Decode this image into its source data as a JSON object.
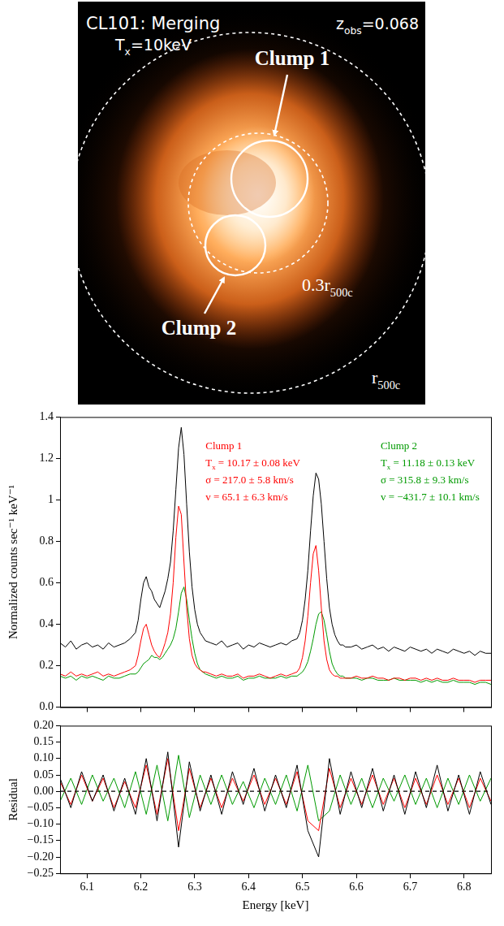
{
  "image": {
    "title": "CL101: Merging",
    "temperature": {
      "main": "T",
      "sub": "x",
      "rest": "=10keV"
    },
    "redshift": {
      "main": "z",
      "sub": "obs",
      "rest": "=0.068"
    },
    "clumps": [
      "Clump 1",
      "Clump 2"
    ],
    "apertures": [
      {
        "main": "0.3r",
        "sub": "500c"
      },
      {
        "main": "r",
        "sub": "500c"
      }
    ]
  },
  "chart_data": [
    {
      "type": "line",
      "ylabel": "Normalized counts sec⁻¹ keV⁻¹",
      "xlim": [
        6.05,
        6.85
      ],
      "xticks": [
        6.1,
        6.2,
        6.3,
        6.4,
        6.5,
        6.6,
        6.7,
        6.8
      ],
      "ylim": [
        0,
        1.4
      ],
      "yticks": [
        {
          "value": 0,
          "label": "0.0"
        },
        0.2,
        0.4,
        0.6,
        0.8,
        1.0,
        1.2,
        1.4
      ],
      "tick_labels": "y",
      "grid": false,
      "x": [
        6.05,
        6.06,
        6.07,
        6.08,
        6.09,
        6.1,
        6.11,
        6.12,
        6.13,
        6.14,
        6.15,
        6.16,
        6.17,
        6.18,
        6.19,
        6.195,
        6.2,
        6.205,
        6.21,
        6.215,
        6.22,
        6.225,
        6.23,
        6.235,
        6.24,
        6.245,
        6.25,
        6.255,
        6.26,
        6.265,
        6.27,
        6.275,
        6.28,
        6.285,
        6.29,
        6.295,
        6.3,
        6.305,
        6.31,
        6.315,
        6.32,
        6.33,
        6.34,
        6.35,
        6.36,
        6.37,
        6.38,
        6.39,
        6.4,
        6.41,
        6.42,
        6.43,
        6.44,
        6.45,
        6.46,
        6.47,
        6.48,
        6.49,
        6.495,
        6.5,
        6.505,
        6.51,
        6.515,
        6.52,
        6.525,
        6.53,
        6.535,
        6.54,
        6.545,
        6.55,
        6.555,
        6.56,
        6.565,
        6.57,
        6.575,
        6.58,
        6.59,
        6.6,
        6.61,
        6.62,
        6.63,
        6.64,
        6.65,
        6.66,
        6.67,
        6.68,
        6.69,
        6.7,
        6.71,
        6.72,
        6.73,
        6.74,
        6.75,
        6.76,
        6.77,
        6.78,
        6.79,
        6.8,
        6.81,
        6.82,
        6.83,
        6.84,
        6.85
      ],
      "series": [
        {
          "color": "#000000",
          "marker": "none",
          "line_style": "solid",
          "values": [
            0.31,
            0.29,
            0.32,
            0.28,
            0.3,
            0.31,
            0.29,
            0.3,
            0.28,
            0.31,
            0.29,
            0.3,
            0.31,
            0.33,
            0.36,
            0.42,
            0.52,
            0.6,
            0.63,
            0.58,
            0.56,
            0.52,
            0.5,
            0.48,
            0.52,
            0.56,
            0.62,
            0.7,
            0.85,
            1.05,
            1.25,
            1.35,
            1.22,
            0.98,
            0.75,
            0.58,
            0.47,
            0.4,
            0.36,
            0.34,
            0.32,
            0.31,
            0.3,
            0.32,
            0.29,
            0.3,
            0.31,
            0.28,
            0.3,
            0.29,
            0.31,
            0.3,
            0.29,
            0.3,
            0.31,
            0.3,
            0.32,
            0.33,
            0.36,
            0.42,
            0.52,
            0.66,
            0.85,
            1.02,
            1.13,
            1.1,
            0.98,
            0.8,
            0.62,
            0.48,
            0.4,
            0.35,
            0.32,
            0.3,
            0.3,
            0.29,
            0.29,
            0.3,
            0.28,
            0.29,
            0.3,
            0.28,
            0.29,
            0.27,
            0.29,
            0.28,
            0.27,
            0.29,
            0.28,
            0.27,
            0.28,
            0.26,
            0.28,
            0.27,
            0.26,
            0.28,
            0.27,
            0.26,
            0.27,
            0.25,
            0.27,
            0.26,
            0.26
          ]
        },
        {
          "color": "#ff0000",
          "marker": "none",
          "line_style": "solid",
          "values": [
            0.16,
            0.15,
            0.17,
            0.15,
            0.16,
            0.15,
            0.16,
            0.17,
            0.15,
            0.16,
            0.15,
            0.16,
            0.17,
            0.18,
            0.2,
            0.25,
            0.32,
            0.38,
            0.4,
            0.35,
            0.3,
            0.27,
            0.25,
            0.24,
            0.27,
            0.31,
            0.36,
            0.45,
            0.6,
            0.82,
            0.97,
            0.93,
            0.7,
            0.48,
            0.33,
            0.25,
            0.21,
            0.19,
            0.18,
            0.17,
            0.17,
            0.16,
            0.15,
            0.16,
            0.15,
            0.15,
            0.16,
            0.14,
            0.15,
            0.15,
            0.16,
            0.15,
            0.14,
            0.15,
            0.16,
            0.15,
            0.16,
            0.17,
            0.19,
            0.24,
            0.32,
            0.44,
            0.6,
            0.74,
            0.78,
            0.66,
            0.48,
            0.32,
            0.23,
            0.18,
            0.16,
            0.15,
            0.15,
            0.14,
            0.14,
            0.14,
            0.14,
            0.15,
            0.14,
            0.14,
            0.15,
            0.14,
            0.14,
            0.13,
            0.14,
            0.14,
            0.13,
            0.14,
            0.14,
            0.13,
            0.14,
            0.13,
            0.14,
            0.13,
            0.13,
            0.14,
            0.13,
            0.13,
            0.13,
            0.12,
            0.13,
            0.13,
            0.13
          ]
        },
        {
          "color": "#009a00",
          "marker": "none",
          "line_style": "solid",
          "values": [
            0.15,
            0.14,
            0.15,
            0.13,
            0.15,
            0.14,
            0.15,
            0.14,
            0.13,
            0.15,
            0.14,
            0.14,
            0.15,
            0.16,
            0.16,
            0.17,
            0.19,
            0.21,
            0.22,
            0.23,
            0.25,
            0.24,
            0.24,
            0.23,
            0.24,
            0.26,
            0.28,
            0.3,
            0.33,
            0.38,
            0.46,
            0.55,
            0.58,
            0.52,
            0.42,
            0.33,
            0.26,
            0.21,
            0.18,
            0.17,
            0.16,
            0.15,
            0.14,
            0.15,
            0.14,
            0.14,
            0.15,
            0.13,
            0.14,
            0.14,
            0.15,
            0.14,
            0.14,
            0.14,
            0.15,
            0.14,
            0.15,
            0.15,
            0.16,
            0.17,
            0.19,
            0.22,
            0.27,
            0.33,
            0.4,
            0.45,
            0.46,
            0.42,
            0.35,
            0.27,
            0.21,
            0.18,
            0.16,
            0.15,
            0.15,
            0.14,
            0.14,
            0.14,
            0.13,
            0.14,
            0.14,
            0.13,
            0.13,
            0.13,
            0.14,
            0.13,
            0.13,
            0.13,
            0.13,
            0.12,
            0.13,
            0.12,
            0.13,
            0.12,
            0.12,
            0.13,
            0.12,
            0.12,
            0.12,
            0.11,
            0.12,
            0.12,
            0.11
          ]
        }
      ],
      "annotations": [
        {
          "color": "#ff0000",
          "lines": [
            "Clump 1",
            {
              "main": "T",
              "sub": "x",
              "rest": " = 10.17 ± 0.08 keV"
            },
            "σ = 217.0 ± 5.8 km/s",
            "v = 65.1 ± 6.3 km/s"
          ]
        },
        {
          "color": "#009a00",
          "lines": [
            "Clump 2",
            {
              "main": "T",
              "sub": "x",
              "rest": " = 11.18 ± 0.13 keV"
            },
            "σ = 315.8 ± 9.3 km/s",
            "v = −431.7 ± 10.1 km/s"
          ]
        }
      ]
    },
    {
      "type": "line",
      "xlabel": "Energy [keV]",
      "ylabel": "Residual",
      "xlim": [
        6.05,
        6.85
      ],
      "xticks": [
        6.1,
        6.2,
        6.3,
        6.4,
        6.5,
        6.6,
        6.7,
        6.8
      ],
      "ylim": [
        -0.25,
        0.2
      ],
      "yticks": [
        {
          "value": -0.25,
          "label": "−0.25"
        },
        {
          "value": -0.2,
          "label": "−0.20"
        },
        {
          "value": -0.15,
          "label": "−0.15"
        },
        {
          "value": -0.1,
          "label": "−0.10"
        },
        {
          "value": -0.05,
          "label": "−0.05"
        },
        {
          "value": 0,
          "label": "0.00"
        },
        {
          "value": 0.05,
          "label": "0.05"
        },
        {
          "value": 0.1,
          "label": "0.10"
        },
        {
          "value": 0.15,
          "label": "0.15"
        },
        {
          "value": 0.2,
          "label": "0.20"
        }
      ],
      "grid": false,
      "x": [
        6.05,
        6.07,
        6.09,
        6.11,
        6.13,
        6.15,
        6.17,
        6.19,
        6.21,
        6.23,
        6.25,
        6.27,
        6.29,
        6.31,
        6.33,
        6.35,
        6.37,
        6.39,
        6.41,
        6.43,
        6.45,
        6.47,
        6.49,
        6.51,
        6.53,
        6.55,
        6.57,
        6.59,
        6.61,
        6.63,
        6.65,
        6.67,
        6.69,
        6.71,
        6.73,
        6.75,
        6.77,
        6.79,
        6.81,
        6.83,
        6.85
      ],
      "series": [
        {
          "color": "#000000",
          "marker": "none",
          "line_style": "solid",
          "values": [
            0.04,
            -0.05,
            0.06,
            -0.03,
            0.05,
            -0.06,
            0.04,
            -0.07,
            0.1,
            -0.09,
            0.12,
            -0.17,
            0.09,
            -0.06,
            0.05,
            -0.07,
            0.06,
            -0.04,
            0.07,
            -0.06,
            0.05,
            -0.05,
            0.08,
            -0.12,
            -0.2,
            0.1,
            -0.07,
            0.06,
            -0.05,
            0.07,
            -0.06,
            0.05,
            -0.07,
            0.06,
            -0.05,
            0.08,
            -0.06,
            0.05,
            -0.07,
            0.06,
            -0.04
          ]
        },
        {
          "color": "#ff0000",
          "marker": "none",
          "line_style": "solid",
          "values": [
            0.03,
            -0.04,
            0.05,
            -0.03,
            0.04,
            -0.05,
            0.03,
            -0.05,
            0.08,
            -0.07,
            0.1,
            -0.12,
            0.07,
            -0.05,
            0.04,
            -0.05,
            0.04,
            -0.03,
            0.05,
            -0.04,
            0.04,
            -0.04,
            0.06,
            -0.09,
            -0.12,
            0.07,
            -0.05,
            0.04,
            -0.04,
            0.05,
            -0.04,
            0.04,
            -0.05,
            0.04,
            -0.04,
            0.05,
            -0.04,
            0.04,
            -0.05,
            0.04,
            -0.03
          ]
        },
        {
          "color": "#009a00",
          "marker": "none",
          "line_style": "solid",
          "values": [
            -0.03,
            0.04,
            -0.04,
            0.05,
            -0.03,
            0.04,
            -0.05,
            0.06,
            -0.07,
            0.08,
            -0.09,
            0.11,
            -0.08,
            0.05,
            -0.04,
            0.05,
            -0.04,
            0.03,
            -0.05,
            0.04,
            -0.04,
            0.05,
            -0.06,
            0.08,
            -0.09,
            -0.06,
            0.05,
            -0.04,
            0.04,
            -0.05,
            0.04,
            -0.03,
            0.05,
            -0.04,
            0.04,
            -0.05,
            0.04,
            -0.04,
            0.05,
            -0.03,
            0.04
          ]
        },
        {
          "color": "#000000",
          "marker": "none",
          "line_style": "dashed",
          "x": [
            6.05,
            6.85
          ],
          "values": [
            0,
            0
          ]
        }
      ]
    }
  ]
}
